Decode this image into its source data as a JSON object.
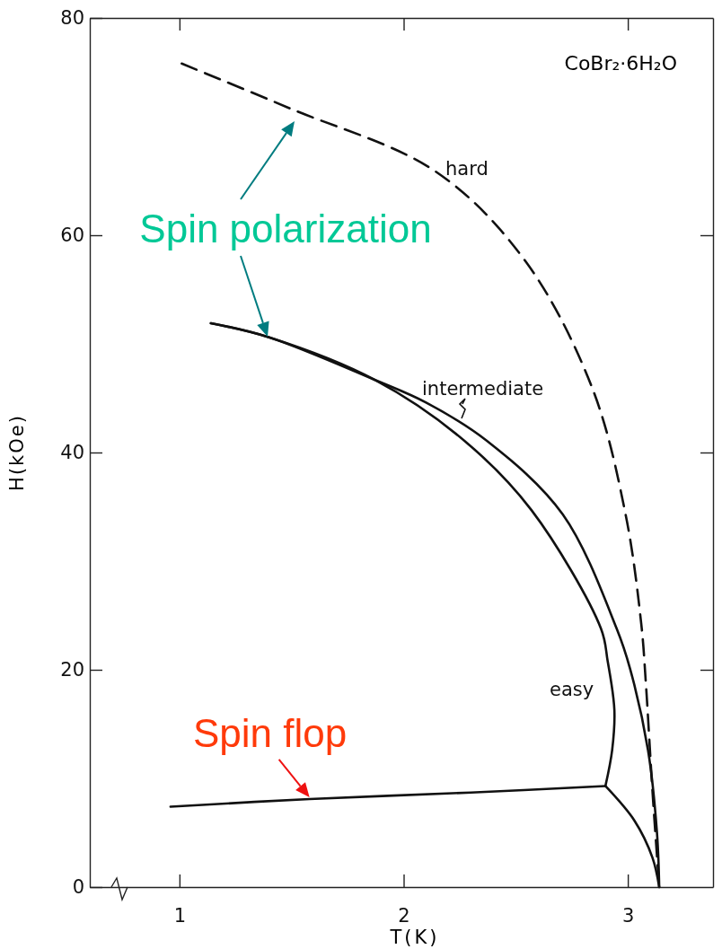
{
  "chart_data": {
    "type": "line",
    "title": "CoBr₂·6H₂O",
    "xlabel": "T(K)",
    "ylabel": "H(kOe)",
    "xlim": [
      0.6,
      3.38
    ],
    "ylim": [
      0,
      80
    ],
    "xticks": [
      1,
      2,
      3
    ],
    "yticks": [
      0,
      20,
      40,
      60,
      80
    ],
    "grid": false,
    "marker": "none",
    "series": [
      {
        "name": "hard",
        "color": "#111111",
        "line_style": "dashed",
        "x": [
          1.01,
          1.49,
          2.14,
          2.54,
          2.84,
          2.99,
          3.06,
          3.08,
          3.11,
          3.14
        ],
        "values": [
          75.8,
          71.7,
          65.9,
          57.7,
          46,
          34.3,
          24.2,
          18.9,
          8.8,
          0
        ]
      },
      {
        "name": "intermediate",
        "color": "#111111",
        "line_style": "solid",
        "x": [
          1.14,
          1.4,
          1.87,
          2.1,
          2.37,
          2.71,
          2.95,
          3.01,
          3.09,
          3.13,
          3.14
        ],
        "values": [
          51.9,
          50.6,
          46.7,
          44.6,
          41.1,
          34.3,
          23.8,
          20.1,
          12.6,
          5,
          0
        ]
      },
      {
        "name": "easy",
        "color": "#111111",
        "line_style": "solid",
        "x": [
          1.14,
          1.4,
          1.87,
          2.27,
          2.57,
          2.88,
          2.91,
          2.94,
          2.93,
          2.9
        ],
        "values": [
          51.9,
          50.6,
          46.7,
          41.1,
          34.7,
          23.8,
          20.8,
          16.3,
          12.6,
          9.3
        ]
      },
      {
        "color": "#111111",
        "line_style": "solid",
        "x": [
          0.96,
          1.58,
          2.3,
          2.9
        ],
        "values": [
          7.4,
          8.1,
          8.7,
          9.3
        ]
      },
      {
        "color": "#111111",
        "line_style": "solid",
        "x": [
          2.9,
          3.03,
          3.11,
          3.14
        ],
        "values": [
          9.3,
          6.1,
          2.7,
          0
        ]
      }
    ],
    "annotations": [
      "Spin polarization",
      {
        "text": "Spin flop",
        "x": 1.58,
        "y": 8.1
      }
    ]
  }
}
